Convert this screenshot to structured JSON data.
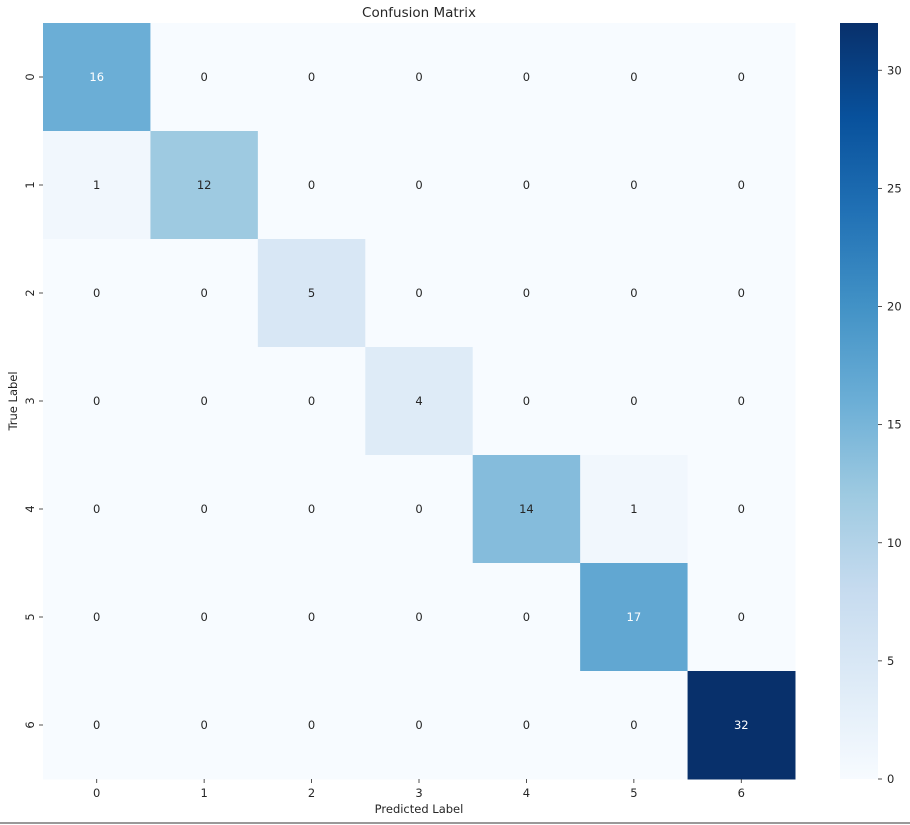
{
  "chart_data": {
    "type": "heatmap",
    "title": "Confusion Matrix",
    "xlabel": "Predicted Label",
    "ylabel": "True Label",
    "x_categories": [
      "0",
      "1",
      "2",
      "3",
      "4",
      "5",
      "6"
    ],
    "y_categories": [
      "0",
      "1",
      "2",
      "3",
      "4",
      "5",
      "6"
    ],
    "values": [
      [
        16,
        0,
        0,
        0,
        0,
        0,
        0
      ],
      [
        1,
        12,
        0,
        0,
        0,
        0,
        0
      ],
      [
        0,
        0,
        5,
        0,
        0,
        0,
        0
      ],
      [
        0,
        0,
        0,
        4,
        0,
        0,
        0
      ],
      [
        0,
        0,
        0,
        0,
        14,
        1,
        0
      ],
      [
        0,
        0,
        0,
        0,
        0,
        17,
        0
      ],
      [
        0,
        0,
        0,
        0,
        0,
        0,
        32
      ]
    ],
    "colormap": "Blues",
    "vmin": 0,
    "vmax": 32,
    "colorbar_ticks": [
      0,
      5,
      10,
      15,
      20,
      25,
      30
    ],
    "grid": false
  }
}
